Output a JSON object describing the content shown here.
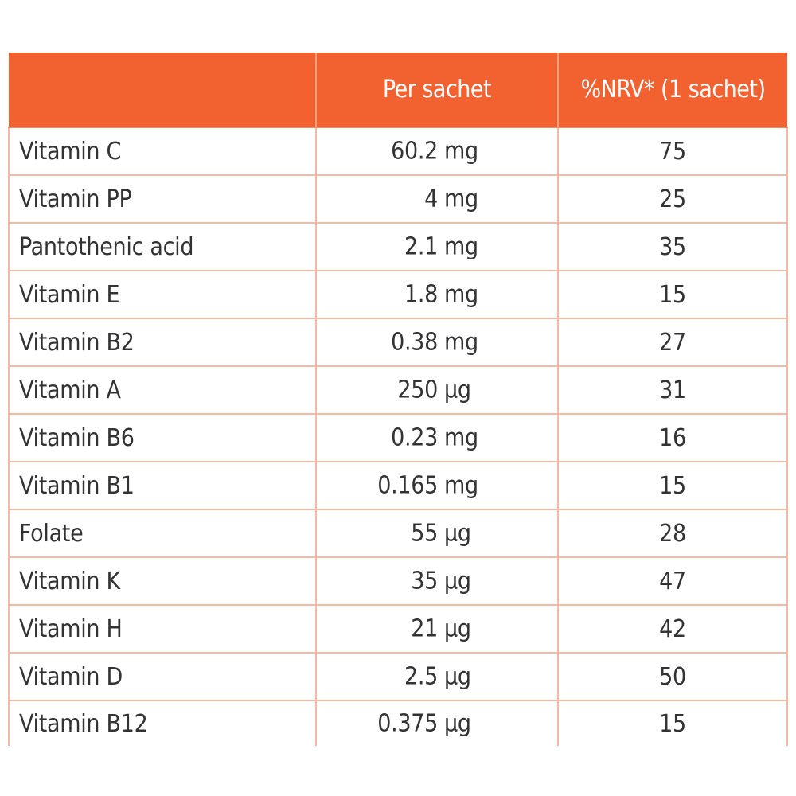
{
  "header": {
    "col1": "",
    "col2": "Per sachet",
    "col3": "%NRV* (1 sachet)"
  },
  "rows": [
    {
      "name": "Vitamin C",
      "amount": "60.2",
      "unit": "mg",
      "nrv": "75"
    },
    {
      "name": "Vitamin PP",
      "amount": "4",
      "unit": "mg",
      "nrv": "25"
    },
    {
      "name": "Pantothenic acid",
      "amount": "2.1",
      "unit": "mg",
      "nrv": "35"
    },
    {
      "name": "Vitamin E",
      "amount": "1.8",
      "unit": "mg",
      "nrv": "15"
    },
    {
      "name": "Vitamin B2",
      "amount": "0.38",
      "unit": "mg",
      "nrv": "27"
    },
    {
      "name": "Vitamin A",
      "amount": "250",
      "unit": "μg",
      "nrv": "31"
    },
    {
      "name": "Vitamin B6",
      "amount": "0.23",
      "unit": "mg",
      "nrv": "16"
    },
    {
      "name": "Vitamin B1",
      "amount": "0.165",
      "unit": "mg",
      "nrv": "15"
    },
    {
      "name": "Folate",
      "amount": "55",
      "unit": "μg",
      "nrv": "28"
    },
    {
      "name": "Vitamin K",
      "amount": "35",
      "unit": "μg",
      "nrv": "47"
    },
    {
      "name": "Vitamin H",
      "amount": "21",
      "unit": "μg",
      "nrv": "42"
    },
    {
      "name": "Vitamin D",
      "amount": "2.5",
      "unit": "μg",
      "nrv": "50"
    },
    {
      "name": "Vitamin B12",
      "amount": "0.375",
      "unit": "μg",
      "nrv": "15"
    }
  ],
  "colors": {
    "header_bg": "#f26230",
    "header_text": "#ffffff",
    "grid_line": "#f3b9a3",
    "body_text": "#333333"
  }
}
